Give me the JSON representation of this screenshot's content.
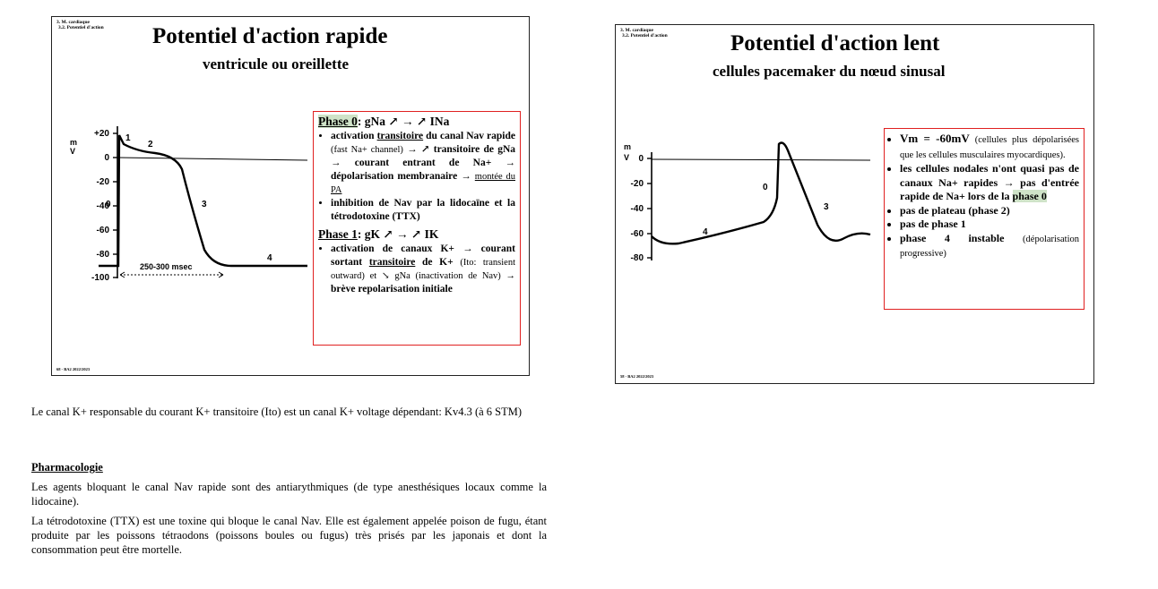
{
  "slide1": {
    "breadcrumb1": "3. M. cardiaque",
    "breadcrumb2": "3.2. Potentiel d'action",
    "title": "Potentiel d'action rapide",
    "subtitle": "ventricule ou oreillette",
    "footer": "68 - BA2 2022/2023",
    "graph": {
      "y_unit_m": "m",
      "y_unit_v": "V",
      "y_ticks": [
        "+20",
        "0",
        "-20",
        "-40",
        "-60",
        "-80",
        "-100"
      ],
      "phase_labels": [
        "0",
        "1",
        "2",
        "3",
        "4"
      ],
      "duration_label": "250-300 msec"
    },
    "box": {
      "phase0_head": "Phase 0",
      "phase0_rest": ": gNa ↗ → ↗ INa",
      "p0_b1_a": "activation",
      "p0_b1_b": "transitoire",
      "p0_b1_c": "du canal Nav rapide",
      "p0_b1_d": "(fast Na+ channel)",
      "p0_b1_e": "→ ↗ transitoire de gNa → courant entrant de Na+ → dépolarisation membranaire →",
      "p0_b1_f": "montée du PA",
      "p0_b2": "inhibition de Nav par la lidocaïne et la tétrodotoxine (TTX)",
      "phase1_head": "Phase 1",
      "phase1_rest": ": gK ↗ → ↗ IK",
      "p1_b1_a": "activation de canaux K+",
      "p1_b1_b": "→ courant sortant",
      "p1_b1_c": "transitoire",
      "p1_b1_d": "de K+",
      "p1_b1_e": "(Ito: transient outward) et ↘ gNa (inactivation de Nav) →",
      "p1_b1_f": "brève repolarisation initiale"
    }
  },
  "slide2": {
    "breadcrumb1": "3. M. cardiaque",
    "breadcrumb2": "3.2. Potentiel d'action",
    "title": "Potentiel d'action lent",
    "subtitle": "cellules pacemaker du nœud sinusal",
    "footer": "58 - BA2 2022/2023",
    "graph": {
      "y_unit_m": "m",
      "y_unit_v": "V",
      "y_ticks": [
        "0",
        "-20",
        "-40",
        "-60",
        "-80"
      ],
      "phase_labels": [
        "0",
        "3",
        "4"
      ]
    },
    "box": {
      "b1_a": "Vm = -60mV",
      "b1_b": "(cellules plus dépolarisées que les cellules musculaires myocardiques).",
      "b2": "les cellules nodales n'ont quasi pas de canaux Na+ rapides → pas d'entrée rapide de Na+ lors de la",
      "b2_hl": "phase 0",
      "b3": "pas de plateau (phase 2)",
      "b4": "pas de phase 1",
      "b5_a": "phase 4 instable",
      "b5_b": "(dépolarisation progressive)"
    }
  },
  "notes": {
    "p1": "Le canal K+ responsable du courant K+ transitoire (Ito) est un canal K+ voltage dépendant: Kv4.3 (à 6 STM)",
    "heading": "Pharmacologie",
    "p2": "Les agents bloquant le canal Nav rapide sont des antiarythmiques (de type anesthésiques locaux comme la lidocaine).",
    "p3": "La tétrodotoxine (TTX) est une toxine qui bloque le canal Nav. Elle est également appelée poison de fugu, étant produite par les poissons tétraodons (poissons boules ou fugus) très prisés par les japonais et dont la consommation peut être mortelle."
  }
}
